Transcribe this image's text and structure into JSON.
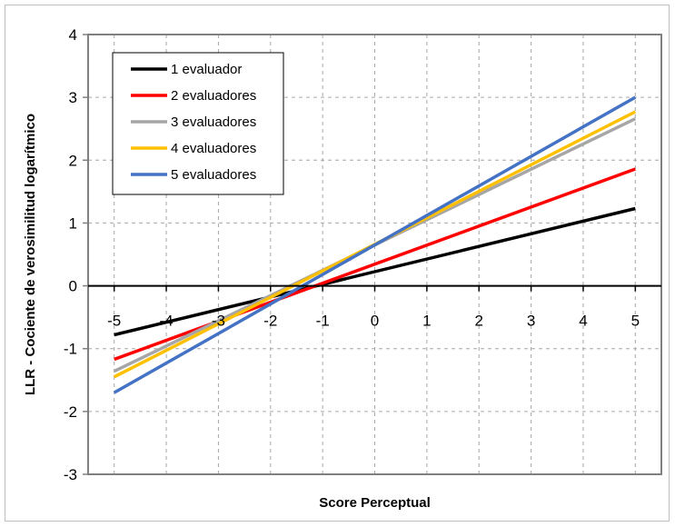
{
  "chart_data": {
    "type": "line",
    "title": "",
    "xlabel": "Score Perceptual",
    "ylabel": "LLR - Cociente de verosimilitud logarítmico",
    "xlim": [
      -5.5,
      5.5
    ],
    "ylim": [
      -3,
      4
    ],
    "x_ticks": [
      "-5",
      "-4",
      "-3",
      "-2",
      "-1",
      "0",
      "1",
      "2",
      "3",
      "4",
      "5"
    ],
    "y_ticks": [
      "4",
      "3",
      "2",
      "1",
      "0",
      "-1",
      "-2",
      "-3"
    ],
    "grid": true,
    "legend_position": "top-left",
    "series": [
      {
        "name": "1 evaluador",
        "color": "#000000",
        "x": [
          -5,
          5
        ],
        "y": [
          -0.78,
          1.23
        ]
      },
      {
        "name": "2 evaluadores",
        "color": "#ff0000",
        "x": [
          -5,
          5
        ],
        "y": [
          -1.17,
          1.86
        ]
      },
      {
        "name": "3 evaluadores",
        "color": "#a6a6a6",
        "x": [
          -5,
          5
        ],
        "y": [
          -1.36,
          2.66
        ]
      },
      {
        "name": "4 evaluadores",
        "color": "#ffc000",
        "x": [
          -5,
          5
        ],
        "y": [
          -1.45,
          2.77
        ]
      },
      {
        "name": "5 evaluadores",
        "color": "#4472c4",
        "x": [
          -5,
          5
        ],
        "y": [
          -1.7,
          3.0
        ]
      }
    ]
  }
}
